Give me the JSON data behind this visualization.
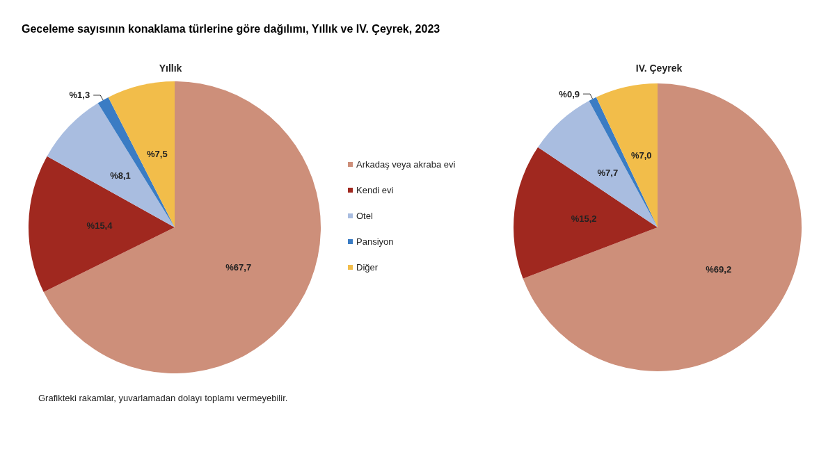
{
  "chart_data": [
    {
      "type": "pie",
      "title": "Geceleme sayısının konaklama türlerine göre dağılımı, Yıllık ve IV. Çeyrek, 2023",
      "subtitle": "Yıllık",
      "categories": [
        "Arkadaş veya akraba evi",
        "Kendi evi",
        "Otel",
        "Pansiyon",
        "Diğer"
      ],
      "values": [
        67.7,
        15.4,
        8.1,
        1.3,
        7.5
      ],
      "value_labels": [
        "%67,7",
        "%15,4",
        "%8,1",
        "%1,3",
        "%7,5"
      ],
      "colors": [
        "#cd8f7a",
        "#a0281f",
        "#a9bde0",
        "#3a7cc4",
        "#f2bd4a"
      ],
      "legend": "right",
      "annotations": [
        "Grafikteki rakamlar, yuvarlamadan dolayı toplamı vermeyebilir."
      ]
    },
    {
      "type": "pie",
      "subtitle": "IV. Çeyrek",
      "categories": [
        null,
        null,
        null,
        null,
        null
      ],
      "values": [
        69.2,
        15.2,
        7.7,
        0.9,
        7.0
      ],
      "value_labels": [
        "%69,2",
        "%15,2",
        "%7,7",
        "%0,9",
        "%7,0"
      ],
      "colors": [
        "#cd8f7a",
        "#a0281f",
        "#a9bde0",
        "#3a7cc4",
        "#f2bd4a"
      ]
    }
  ]
}
